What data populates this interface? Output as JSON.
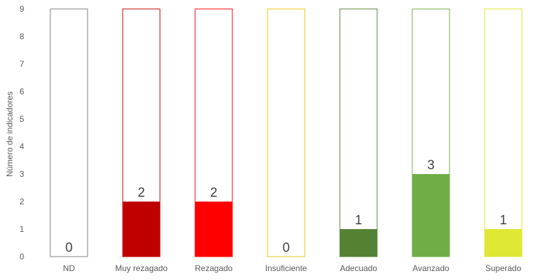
{
  "chart_data": {
    "type": "bar",
    "title": "",
    "xlabel": "",
    "ylabel": "Número de indicadores",
    "ylim": [
      0,
      9
    ],
    "yticks": [
      0,
      1,
      2,
      3,
      4,
      5,
      6,
      7,
      8,
      9
    ],
    "grid": false,
    "legend": "none",
    "categories": [
      "ND",
      "Muy rezagado",
      "Rezagado",
      "Insuficiente",
      "Adecuado",
      "Avanzado",
      "Superado"
    ],
    "values": [
      0,
      2,
      2,
      0,
      1,
      3,
      1
    ],
    "colors": [
      "#7f7f7f",
      "#c00000",
      "#ff0000",
      "#e6c619",
      "#548235",
      "#70ad47",
      "#dfe834"
    ],
    "data_labels": [
      "0",
      "2",
      "2",
      "0",
      "1",
      "3",
      "1"
    ]
  }
}
